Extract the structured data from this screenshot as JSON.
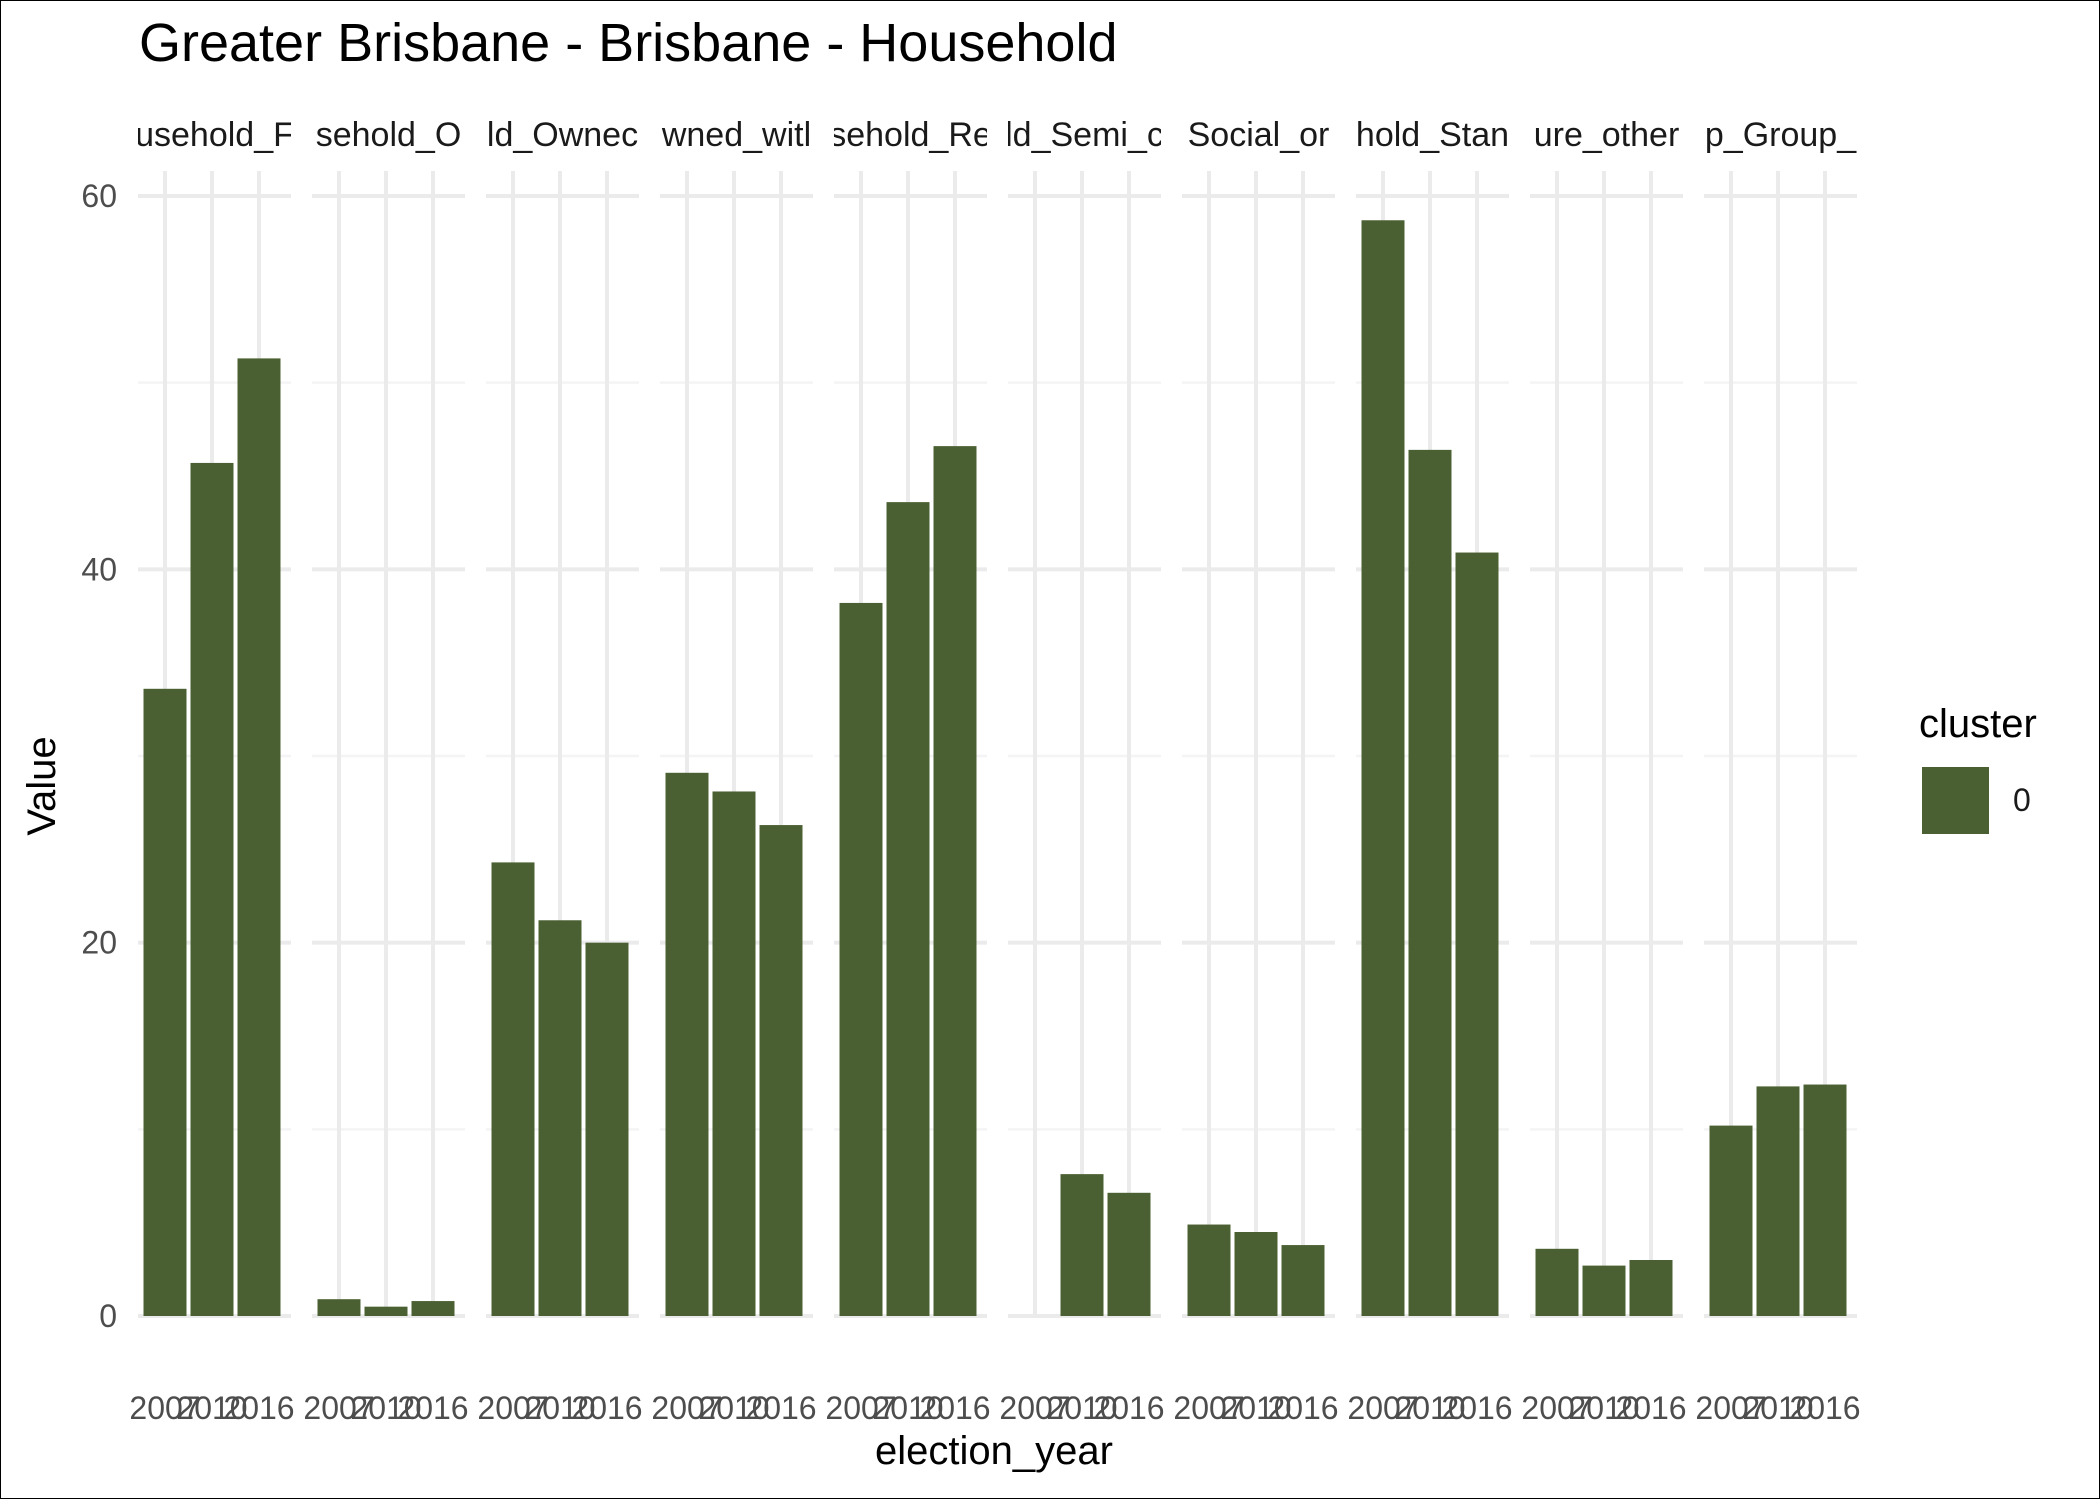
{
  "chart_data": {
    "type": "bar",
    "title": "Greater Brisbane - Brisbane - Household",
    "xlabel": "election_year",
    "ylabel": "Value",
    "ylim": [
      0,
      60
    ],
    "yticks": [
      0,
      20,
      40,
      60
    ],
    "grid": true,
    "legend": {
      "title": "cluster",
      "position": "right",
      "entries": [
        {
          "label": "0",
          "color": "#4a6032"
        }
      ]
    },
    "categories": [
      "2007",
      "2010",
      "2016"
    ],
    "panels": [
      {
        "label": "usehold_F",
        "values": [
          33.6,
          45.7,
          51.3
        ]
      },
      {
        "label": "sehold_O",
        "values": [
          0.9,
          0.5,
          0.8
        ]
      },
      {
        "label": "ld_Ownec",
        "values": [
          24.3,
          21.2,
          20.0
        ]
      },
      {
        "label": "wned_witl",
        "values": [
          29.1,
          28.1,
          26.3
        ]
      },
      {
        "label": "sehold_Re",
        "values": [
          38.2,
          43.6,
          46.6
        ]
      },
      {
        "label": "ld_Semi_c",
        "values": [
          null,
          7.6,
          6.6
        ]
      },
      {
        "label": "Social_or",
        "values": [
          4.9,
          4.5,
          3.8
        ]
      },
      {
        "label": "hold_Stan",
        "values": [
          58.7,
          46.4,
          40.9
        ]
      },
      {
        "label": "ure_other",
        "values": [
          3.6,
          2.7,
          3.0
        ]
      },
      {
        "label": "p_Group_",
        "values": [
          10.2,
          12.3,
          12.4
        ]
      }
    ],
    "bar_color": "#4a6032"
  }
}
